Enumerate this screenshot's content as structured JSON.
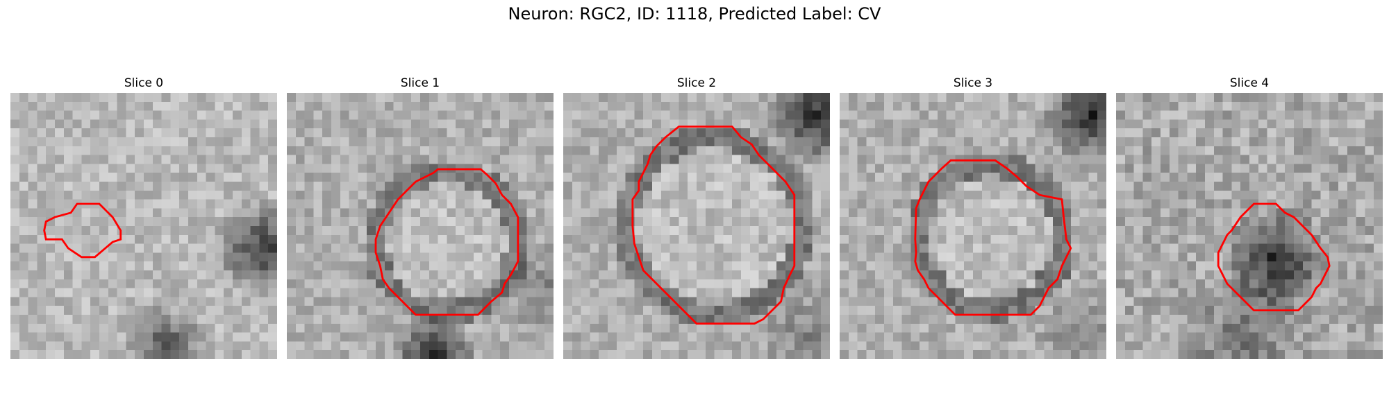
{
  "figure": {
    "title": "Neuron: RGC2, ID: 1118, Predicted Label: CV"
  },
  "panels": [
    {
      "title": "Slice 0",
      "texture": "bright-mottled",
      "dark_region": "right",
      "outline_color": "#ff0000"
    },
    {
      "title": "Slice 1",
      "texture": "mottled",
      "dark_region": "bottom",
      "outline_color": "#ff0000"
    },
    {
      "title": "Slice 2",
      "texture": "mottled",
      "dark_region": "top-right",
      "outline_color": "#ff0000"
    },
    {
      "title": "Slice 3",
      "texture": "mottled",
      "dark_region": "top-right",
      "outline_color": "#ff0000"
    },
    {
      "title": "Slice 4",
      "texture": "noisy",
      "dark_region": "center",
      "outline_color": "#ff0000"
    }
  ]
}
